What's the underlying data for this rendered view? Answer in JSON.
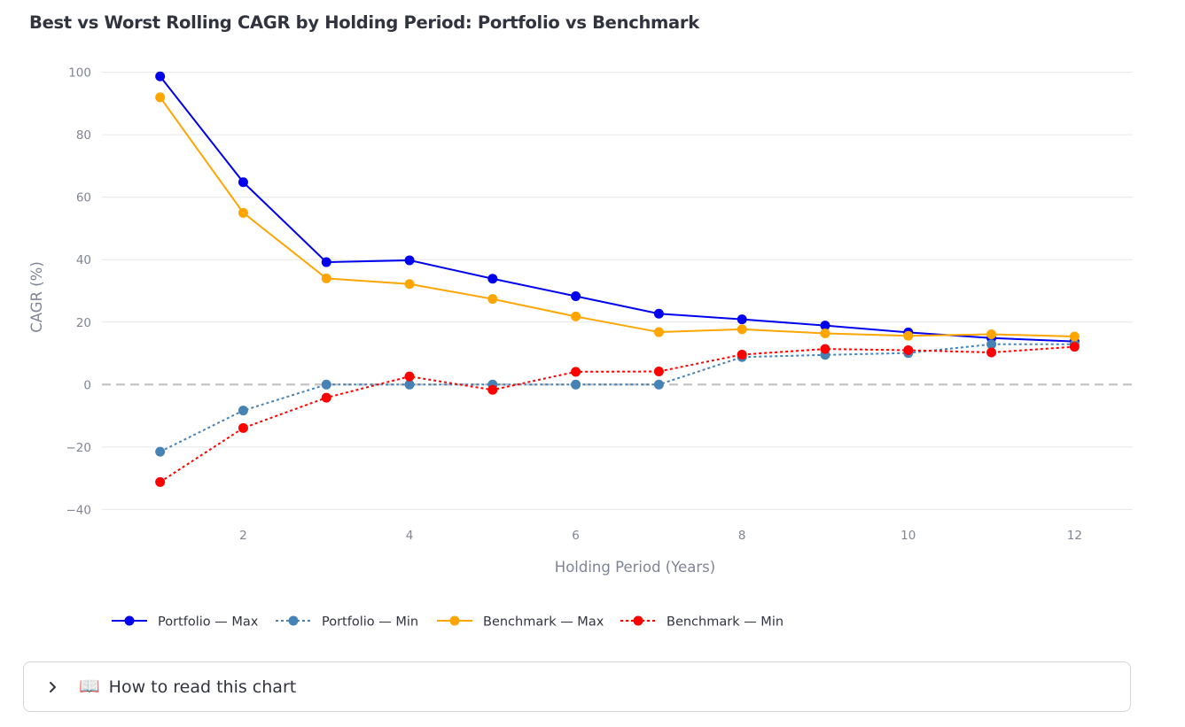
{
  "title": "Best vs Worst Rolling CAGR by Holding Period: Portfolio vs Benchmark",
  "expander": {
    "chevron_icon": "chevron-right-icon",
    "book_icon": "📖",
    "label": "How to read this chart"
  },
  "chart_data": {
    "type": "line",
    "title": "Best vs Worst Rolling CAGR by Holding Period: Portfolio vs Benchmark",
    "xlabel": "Holding Period (Years)",
    "ylabel": "CAGR (%)",
    "x": [
      1,
      2,
      3,
      4,
      5,
      6,
      7,
      8,
      9,
      10,
      11,
      12
    ],
    "xlim": [
      0.3,
      12.7
    ],
    "ylim": [
      -45,
      105
    ],
    "xticks": [
      2,
      4,
      6,
      8,
      10,
      12
    ],
    "yticks": [
      -40,
      -20,
      0,
      20,
      40,
      60,
      80,
      100
    ],
    "ytick_labels": [
      "−40",
      "−20",
      "0",
      "20",
      "40",
      "60",
      "80",
      "100"
    ],
    "grid": true,
    "zero_line": "dashed",
    "legend_position": "bottom",
    "series": [
      {
        "name": "Portfolio — Max",
        "color": "#0000ee",
        "dash": "solid",
        "values": [
          98.7,
          64.8,
          39.2,
          39.8,
          33.9,
          28.3,
          22.7,
          20.9,
          18.9,
          16.7,
          14.9,
          13.8
        ]
      },
      {
        "name": "Portfolio — Min",
        "color": "#4682b4",
        "dash": "dot",
        "values": [
          -21.5,
          -8.3,
          0.0,
          0.0,
          0.0,
          0.0,
          0.0,
          8.8,
          9.5,
          10.1,
          12.9,
          12.9
        ]
      },
      {
        "name": "Benchmark — Max",
        "color": "#ffa500",
        "dash": "solid",
        "values": [
          92.0,
          55.0,
          34.0,
          32.2,
          27.4,
          21.8,
          16.8,
          17.7,
          16.4,
          15.6,
          16.1,
          15.4
        ]
      },
      {
        "name": "Benchmark — Min",
        "color": "#ff0000",
        "dash": "dot",
        "values": [
          -31.2,
          -13.9,
          -4.2,
          2.6,
          -1.7,
          4.1,
          4.2,
          9.6,
          11.4,
          11.0,
          10.3,
          12.1
        ]
      }
    ]
  }
}
